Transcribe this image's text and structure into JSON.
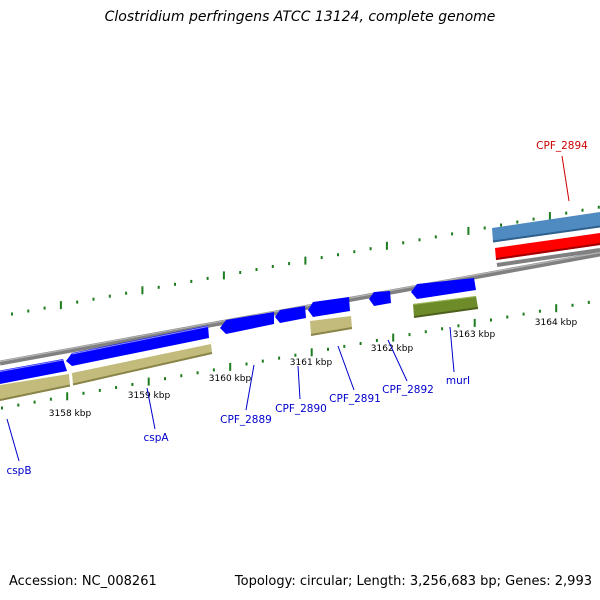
{
  "title": "Clostridium perfringens ATCC 13124, complete genome",
  "footer": {
    "accession": "Accession: NC_008261",
    "summary": "Topology: circular; Length: 3,256,683 bp; Genes: 2,993"
  },
  "colors": {
    "forward_cds": "#0000ff",
    "feature_khaki": "#c2bb7c",
    "feature_green": "#6e8b2a",
    "rna_red": "#ff0000",
    "rna_blue": "#4f8ac1",
    "backbone": "#808080",
    "ticks": "#1d7c1d",
    "label_blue": "#0000cc",
    "label_red": "#cc0000"
  },
  "tick_labels": [
    "3158 kbp",
    "3159 kbp",
    "3160 kbp",
    "3161 kbp",
    "3162 kbp",
    "3163 kbp",
    "3164 kbp"
  ],
  "gene_labels": [
    "cspB",
    "cspA",
    "CPF_2889",
    "CPF_2890",
    "CPF_2891",
    "CPF_2892",
    "murI",
    "CPF_2894"
  ]
}
